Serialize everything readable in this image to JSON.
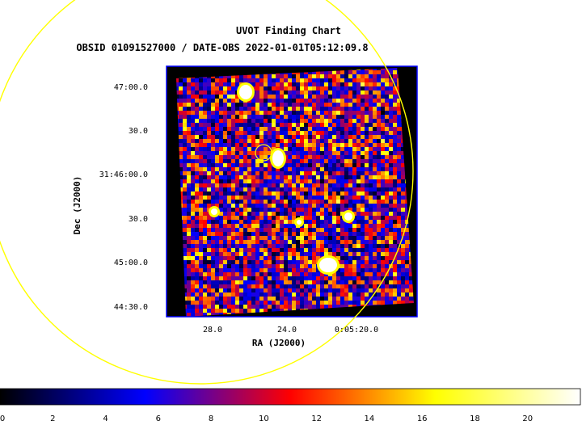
{
  "chart_data": {
    "type": "heatmap",
    "title": "UVOT Finding Chart",
    "subtitle": "OBSID 01091527000 / DATE-OBS 2022-01-01T05:12:09.8",
    "xlabel": "RA (J2000)",
    "ylabel": "Dec (J2000)",
    "x_ticks": [
      "28.0",
      "24.0",
      "0:05:20.0"
    ],
    "y_ticks": [
      "47:00.0",
      "30.0",
      "31:46:00.0",
      "30.0",
      "45:00.0",
      "44:30.0"
    ],
    "colorbar": {
      "min": 0,
      "max": 22,
      "ticks": [
        0,
        2,
        4,
        6,
        8,
        10,
        12,
        14,
        16,
        18,
        20
      ],
      "colors": [
        "#000000",
        "#0000ff",
        "#ff0000",
        "#ffff00",
        "#ffffff"
      ]
    },
    "frame_color": "#0000ff",
    "overlay_color": "#ffff00"
  }
}
